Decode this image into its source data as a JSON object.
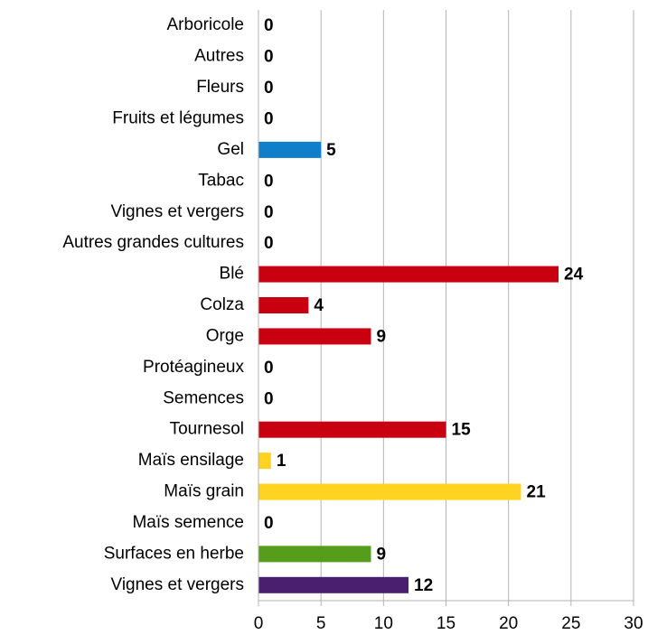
{
  "chart_data": {
    "type": "barh",
    "categories": [
      "Arboricole",
      "Autres",
      "Fleurs",
      "Fruits et légumes",
      "Gel",
      "Tabac",
      "Vignes et vergers",
      "Autres grandes cultures",
      "Blé",
      "Colza",
      "Orge",
      "Protéagineux",
      "Semences",
      "Tournesol",
      "Maïs ensilage",
      "Maïs grain",
      "Maïs semence",
      "Surfaces en herbe",
      "Vignes et vergers"
    ],
    "values": [
      0,
      0,
      0,
      0,
      5,
      0,
      0,
      0,
      24,
      4,
      9,
      0,
      0,
      15,
      1,
      21,
      0,
      9,
      12
    ],
    "colors": [
      "#0f7fc9",
      "#0f7fc9",
      "#0f7fc9",
      "#0f7fc9",
      "#0f7fc9",
      "#0f7fc9",
      "#0f7fc9",
      "#c9000f",
      "#c9000f",
      "#c9000f",
      "#c9000f",
      "#c9000f",
      "#c9000f",
      "#c9000f",
      "#ffd320",
      "#ffd320",
      "#ffd320",
      "#579d1c",
      "#4b1f6f"
    ],
    "xlim": [
      0,
      30
    ],
    "xticks": [
      0,
      5,
      10,
      15,
      20,
      25,
      30
    ],
    "grid": true
  }
}
